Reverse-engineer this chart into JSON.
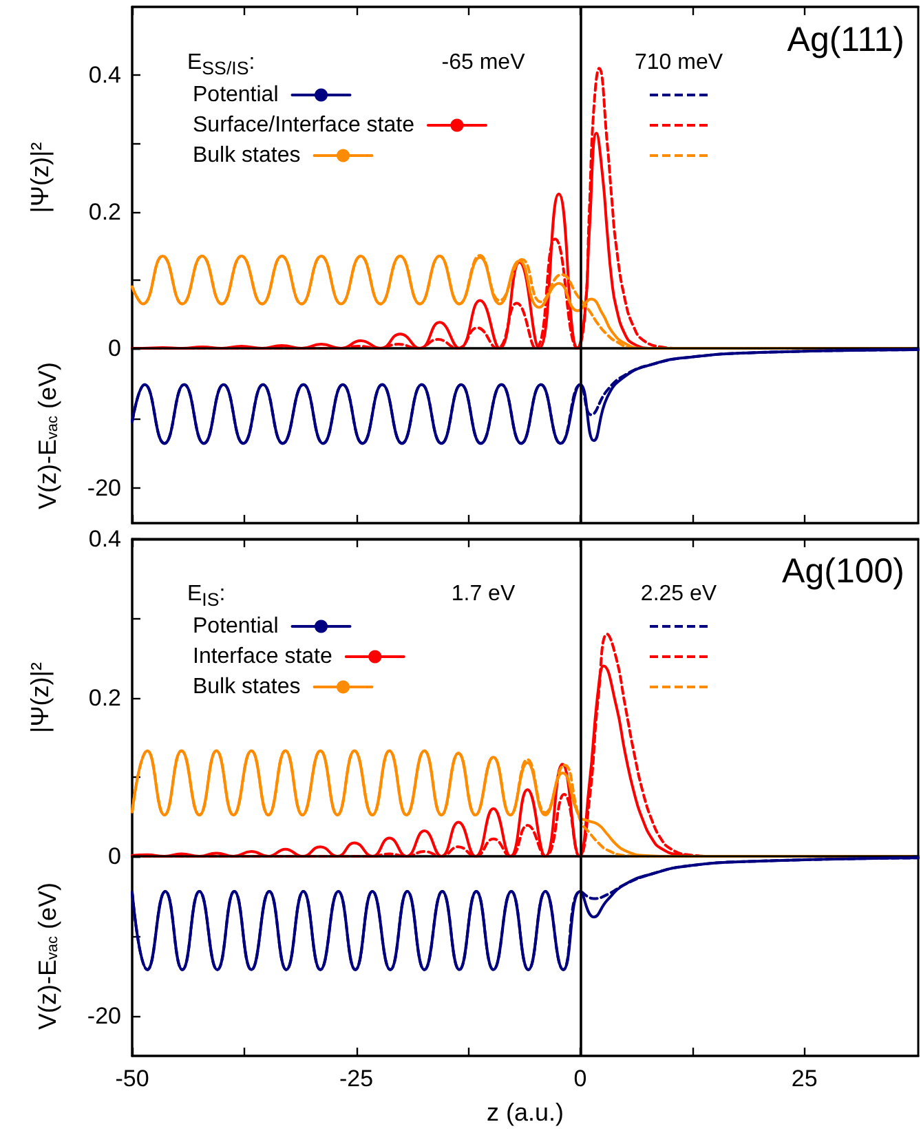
{
  "chart_data": [
    {
      "type": "line",
      "ylabel": "|Ψ(z)|²",
      "legend_title": "E$_{SS/IS}$:",
      "annotations": [
        "-65 meV",
        "710 meV",
        "Ag(111)"
      ],
      "legend": "top left",
      "tick_labels": "y",
      "xlim": [
        -50,
        37.7
      ],
      "xticks": [
        -50,
        {
          "value": -37.5,
          "label": null
        },
        -25,
        {
          "value": -12.5,
          "label": null
        },
        0,
        {
          "value": 12.5,
          "label": null
        },
        25
      ],
      "ylim": [
        0,
        0.5
      ],
      "yticks": [
        {
          "value": 0,
          "label": null
        },
        {
          "value": 0.1,
          "label": null
        },
        0.2,
        {
          "value": 0.3,
          "label": null
        },
        0.4
      ],
      "ref_lines": [
        {
          "axis": "x",
          "value": 0,
          "color": "#000000"
        }
      ],
      "series": [
        {
          "name": "Surface/Interface state",
          "color": "#ff0000",
          "line_style": "solid",
          "x": [
            -50,
            -48.8,
            -46.6,
            -44.4,
            -42.2,
            -40.0,
            -37.8,
            -35.5,
            -33.3,
            -31.1,
            -28.9,
            -26.7,
            -24.5,
            -22.3,
            -20.1,
            -17.9,
            -15.7,
            -13.5,
            -11.2,
            -9.0,
            -6.8,
            -4.6,
            -2.4,
            -0.3,
            0.5,
            1,
            1.8,
            2.5,
            3,
            3.5,
            4,
            5,
            6,
            8,
            37
          ],
          "values": [
            0,
            0,
            0.001,
            0,
            0.002,
            0,
            0.003,
            0,
            0.004,
            0,
            0.006,
            0,
            0.011,
            0,
            0.021,
            0,
            0.038,
            0,
            0.07,
            0,
            0.126,
            0,
            0.226,
            0,
            0.05,
            0.17,
            0.315,
            0.25,
            0.17,
            0.1,
            0.06,
            0.02,
            0.006,
            0,
            0
          ]
        },
        {
          "color": "#ff0000",
          "line_style": "dashed",
          "x": [
            -50,
            -27.0,
            -24.7,
            -22.5,
            -20.3,
            -18.1,
            -15.9,
            -13.7,
            -11.5,
            -9.3,
            -7.1,
            -5.0,
            -2.8,
            -0.3,
            0.5,
            1,
            1.5,
            2.1,
            3,
            3.5,
            4,
            5,
            6,
            7,
            9,
            11,
            37
          ],
          "values": [
            0,
            0,
            0.003,
            0,
            0.006,
            0,
            0.013,
            0,
            0.03,
            0,
            0.066,
            0,
            0.16,
            0,
            0.05,
            0.2,
            0.35,
            0.41,
            0.3,
            0.22,
            0.15,
            0.07,
            0.03,
            0.012,
            0.002,
            0,
            0
          ]
        },
        {
          "name": "Bulk states",
          "color": "#ff8c00",
          "line_style": "solid",
          "x": [
            -50,
            -48.8,
            -46.6,
            -44.4,
            -42.2,
            -40.0,
            -37.8,
            -35.5,
            -33.3,
            -31.1,
            -28.9,
            -26.7,
            -24.5,
            -22.3,
            -20.1,
            -17.9,
            -15.7,
            -13.5,
            -11.2,
            -9.0,
            -6.8,
            -4.6,
            -2.4,
            -0.3,
            1.2,
            2.5,
            3.5,
            5,
            7,
            37
          ],
          "values": [
            0.09,
            0.065,
            0.135,
            0.065,
            0.135,
            0.065,
            0.135,
            0.065,
            0.135,
            0.065,
            0.135,
            0.065,
            0.135,
            0.065,
            0.135,
            0.065,
            0.135,
            0.065,
            0.133,
            0.065,
            0.128,
            0.06,
            0.095,
            0.055,
            0.072,
            0.05,
            0.025,
            0.007,
            0,
            0
          ]
        },
        {
          "color": "#ff8c00",
          "line_style": "dashed",
          "x": [
            -50,
            -48.8,
            -46.6,
            -44.4,
            -42.2,
            -40.0,
            -37.8,
            -35.5,
            -33.3,
            -31.1,
            -28.9,
            -26.7,
            -24.5,
            -22.3,
            -20.1,
            -17.9,
            -15.7,
            -13.5,
            -11.2,
            -9.0,
            -6.5,
            -4.4,
            -2.1,
            -0.2,
            1,
            2,
            3,
            4,
            6,
            37
          ],
          "values": [
            0.09,
            0.065,
            0.135,
            0.065,
            0.135,
            0.065,
            0.135,
            0.065,
            0.135,
            0.065,
            0.135,
            0.065,
            0.135,
            0.065,
            0.135,
            0.065,
            0.135,
            0.065,
            0.136,
            0.07,
            0.13,
            0.068,
            0.108,
            0.075,
            0.055,
            0.035,
            0.02,
            0.01,
            0,
            0
          ]
        }
      ]
    },
    {
      "type": "line",
      "ylabel": "V(z)-E$_{vac}$ (eV)",
      "tick_labels": "y",
      "xlim": [
        -50,
        37.7
      ],
      "xticks": [
        -50,
        {
          "value": -37.5,
          "label": null
        },
        -25,
        {
          "value": -12.5,
          "label": null
        },
        0,
        {
          "value": 12.5,
          "label": null
        },
        25
      ],
      "ylim": [
        -25,
        0
      ],
      "yticks": [
        0,
        {
          "value": -10,
          "label": null
        },
        -20
      ],
      "ref_lines": [
        {
          "axis": "x",
          "value": 0,
          "color": "#000000"
        }
      ],
      "series": [
        {
          "name": "Potential",
          "color": "#000080",
          "line_style": "solid",
          "x": [
            -50,
            -48.6,
            -46.4,
            -44.2,
            -42.0,
            -39.8,
            -37.6,
            -35.4,
            -33.2,
            -30.9,
            -28.7,
            -26.5,
            -24.3,
            -22.1,
            -19.9,
            -17.7,
            -15.5,
            -13.3,
            -11.1,
            -8.8,
            -6.6,
            -4.4,
            -2.2,
            0,
            1.5,
            3,
            5,
            8,
            12,
            20,
            37.7
          ],
          "values": [
            -10.5,
            -5.2,
            -13.6,
            -5.2,
            -13.6,
            -5.2,
            -13.6,
            -5.2,
            -13.6,
            -5.2,
            -13.6,
            -5.2,
            -13.6,
            -5.2,
            -13.6,
            -5.2,
            -13.6,
            -5.2,
            -13.6,
            -5.2,
            -13.6,
            -5.2,
            -13.6,
            -5.2,
            -13.2,
            -7,
            -4,
            -2.3,
            -1.3,
            -0.6,
            -0.2
          ]
        },
        {
          "color": "#000080",
          "line_style": "dashed",
          "x": [
            -50,
            -48.6,
            -46.4,
            -44.2,
            -42.0,
            -39.8,
            -37.6,
            -35.4,
            -33.2,
            -30.9,
            -28.7,
            -26.5,
            -24.3,
            -22.1,
            -19.9,
            -17.7,
            -15.5,
            -13.3,
            -11.1,
            -8.8,
            -6.6,
            -4.4,
            -2.2,
            0,
            1.2,
            3,
            5,
            8,
            12,
            20,
            37.7
          ],
          "values": [
            -10.5,
            -5.2,
            -13.6,
            -5.2,
            -13.6,
            -5.2,
            -13.6,
            -5.2,
            -13.6,
            -5.2,
            -13.6,
            -5.2,
            -13.6,
            -5.2,
            -13.6,
            -5.2,
            -13.6,
            -5.2,
            -13.6,
            -5.2,
            -13.6,
            -5.2,
            -13.6,
            -5.2,
            -9.5,
            -6,
            -3.8,
            -2.3,
            -1.3,
            -0.6,
            -0.2
          ]
        }
      ]
    },
    {
      "type": "line",
      "ylabel": "|Ψ(z)|²",
      "legend_title": "E$_{IS}$:",
      "annotations": [
        "1.7 eV",
        "2.25 eV",
        "Ag(100)"
      ],
      "legend": "top left",
      "tick_labels": "y",
      "xlim": [
        -50,
        37.7
      ],
      "xticks": [
        -50,
        {
          "value": -37.5,
          "label": null
        },
        -25,
        {
          "value": -12.5,
          "label": null
        },
        0,
        {
          "value": 12.5,
          "label": null
        },
        25
      ],
      "ylim": [
        0,
        0.4
      ],
      "yticks": [
        {
          "value": 0,
          "label": null
        },
        {
          "value": 0.1,
          "label": null
        },
        0.2,
        {
          "value": 0.3,
          "label": null
        },
        0.4
      ],
      "ref_lines": [
        {
          "axis": "x",
          "value": 0,
          "color": "#000000"
        }
      ],
      "series": [
        {
          "name": "Interface state",
          "color": "#ff0000",
          "line_style": "solid",
          "x": [
            -50,
            -48.3,
            -46.4,
            -44.5,
            -42.5,
            -40.6,
            -38.7,
            -36.7,
            -34.8,
            -32.9,
            -31.0,
            -29.0,
            -27.1,
            -25.2,
            -23.2,
            -21.3,
            -19.4,
            -17.4,
            -15.5,
            -13.6,
            -11.7,
            -9.7,
            -7.8,
            -5.9,
            -3.9,
            -2.0,
            -0.1,
            1,
            2,
            2.6,
            4,
            5,
            6,
            7,
            8,
            9,
            11,
            14,
            37
          ],
          "values": [
            0.001,
            0.002,
            0,
            0.003,
            0,
            0.004,
            0,
            0.006,
            0,
            0.009,
            0,
            0.012,
            0,
            0.017,
            0,
            0.023,
            0,
            0.032,
            0,
            0.043,
            0,
            0.06,
            0,
            0.084,
            0,
            0.116,
            0,
            0.09,
            0.21,
            0.24,
            0.19,
            0.13,
            0.08,
            0.045,
            0.022,
            0.01,
            0.002,
            0,
            0
          ]
        },
        {
          "color": "#ff0000",
          "line_style": "dashed",
          "x": [
            -50,
            -23.2,
            -21.3,
            -19.4,
            -17.4,
            -15.5,
            -13.6,
            -11.7,
            -9.7,
            -7.8,
            -5.9,
            -3.9,
            -1.8,
            -0.1,
            1,
            2,
            3,
            4,
            5,
            6,
            7,
            8,
            9,
            10,
            12,
            15,
            37
          ],
          "values": [
            0,
            0,
            0.003,
            0,
            0.006,
            0,
            0.012,
            0,
            0.022,
            0,
            0.039,
            0,
            0.078,
            0,
            0.07,
            0.2,
            0.28,
            0.25,
            0.19,
            0.13,
            0.08,
            0.045,
            0.022,
            0.01,
            0.002,
            0,
            0
          ]
        },
        {
          "name": "Bulk states",
          "color": "#ff8c00",
          "line_style": "solid",
          "x": [
            -50,
            -48.3,
            -46.4,
            -44.5,
            -42.5,
            -40.6,
            -38.7,
            -36.7,
            -34.8,
            -32.9,
            -31.0,
            -29.0,
            -27.1,
            -25.2,
            -23.2,
            -21.3,
            -19.4,
            -17.4,
            -15.5,
            -13.6,
            -11.7,
            -9.7,
            -7.8,
            -5.9,
            -3.9,
            -2.0,
            -0.1,
            0.8,
            2,
            3,
            4,
            5,
            7,
            9,
            37
          ],
          "values": [
            0.056,
            0.133,
            0.052,
            0.133,
            0.052,
            0.133,
            0.052,
            0.133,
            0.052,
            0.133,
            0.052,
            0.133,
            0.052,
            0.133,
            0.052,
            0.133,
            0.052,
            0.133,
            0.052,
            0.13,
            0.052,
            0.125,
            0.052,
            0.118,
            0.052,
            0.105,
            0.05,
            0.045,
            0.04,
            0.028,
            0.015,
            0.007,
            0.001,
            0,
            0
          ]
        },
        {
          "color": "#ff8c00",
          "line_style": "dashed",
          "x": [
            -50,
            -48.3,
            -46.4,
            -44.5,
            -42.5,
            -40.6,
            -38.7,
            -36.7,
            -34.8,
            -32.9,
            -31.0,
            -29.0,
            -27.1,
            -25.2,
            -23.2,
            -21.3,
            -19.4,
            -17.4,
            -15.5,
            -13.6,
            -11.7,
            -9.7,
            -7.8,
            -5.9,
            -3.9,
            -1.8,
            0,
            1,
            2,
            3,
            5,
            7,
            37
          ],
          "values": [
            0.056,
            0.133,
            0.052,
            0.133,
            0.052,
            0.133,
            0.052,
            0.133,
            0.052,
            0.133,
            0.052,
            0.133,
            0.052,
            0.133,
            0.052,
            0.133,
            0.052,
            0.133,
            0.052,
            0.13,
            0.052,
            0.125,
            0.052,
            0.122,
            0.055,
            0.115,
            0.045,
            0.03,
            0.017,
            0.008,
            0.001,
            0,
            0
          ]
        }
      ]
    },
    {
      "type": "line",
      "ylabel": "V(z)-E$_{vac}$ (eV)",
      "xlabel": "z (a.u.)",
      "xlim": [
        -50,
        37.7
      ],
      "xticks": [
        -50,
        {
          "value": -37.5,
          "label": null
        },
        -25,
        {
          "value": -12.5,
          "label": null
        },
        0,
        {
          "value": 12.5,
          "label": null
        },
        25
      ],
      "ylim": [
        -25,
        0
      ],
      "yticks": [
        0,
        {
          "value": -10,
          "label": null
        },
        -20
      ],
      "ref_lines": [
        {
          "axis": "x",
          "value": 0,
          "color": "#000000"
        }
      ],
      "series": [
        {
          "name": "Potential",
          "color": "#000080",
          "line_style": "solid",
          "x": [
            -50,
            -48.3,
            -46.3,
            -44.4,
            -42.5,
            -40.5,
            -38.6,
            -36.7,
            -34.7,
            -32.8,
            -30.9,
            -29.0,
            -27.0,
            -25.1,
            -23.2,
            -21.2,
            -19.3,
            -17.4,
            -15.4,
            -13.5,
            -11.6,
            -9.7,
            -7.7,
            -5.8,
            -3.9,
            -1.9,
            0,
            1.5,
            3,
            5,
            8,
            12,
            20,
            37.7
          ],
          "values": [
            -4.5,
            -14.2,
            -4.4,
            -14.2,
            -4.4,
            -14.2,
            -4.4,
            -14.2,
            -4.4,
            -14.2,
            -4.4,
            -14.2,
            -4.4,
            -14.2,
            -4.4,
            -14.2,
            -4.4,
            -14.2,
            -4.4,
            -14.2,
            -4.4,
            -14.2,
            -4.4,
            -14.2,
            -4.4,
            -14.2,
            -4.4,
            -7.6,
            -5.5,
            -3.5,
            -2.2,
            -1.2,
            -0.6,
            -0.2
          ]
        },
        {
          "color": "#000080",
          "line_style": "dashed",
          "x": [
            -50,
            -48.3,
            -46.3,
            -44.4,
            -42.5,
            -40.5,
            -38.6,
            -36.7,
            -34.7,
            -32.8,
            -30.9,
            -29.0,
            -27.0,
            -25.1,
            -23.2,
            -21.2,
            -19.3,
            -17.4,
            -15.4,
            -13.5,
            -11.6,
            -9.7,
            -7.7,
            -5.8,
            -3.9,
            -1.9,
            0,
            1.5,
            3,
            5,
            8,
            12,
            20,
            37.7
          ],
          "values": [
            -4.5,
            -14.2,
            -4.4,
            -14.2,
            -4.4,
            -14.2,
            -4.4,
            -14.2,
            -4.4,
            -14.2,
            -4.4,
            -14.2,
            -4.4,
            -14.2,
            -4.4,
            -14.2,
            -4.4,
            -14.2,
            -4.4,
            -14.2,
            -4.4,
            -14.2,
            -4.4,
            -14.2,
            -4.4,
            -14.2,
            -4.4,
            -5.3,
            -4.8,
            -3.5,
            -2.2,
            -1.2,
            -0.6,
            -0.2
          ]
        }
      ]
    }
  ]
}
